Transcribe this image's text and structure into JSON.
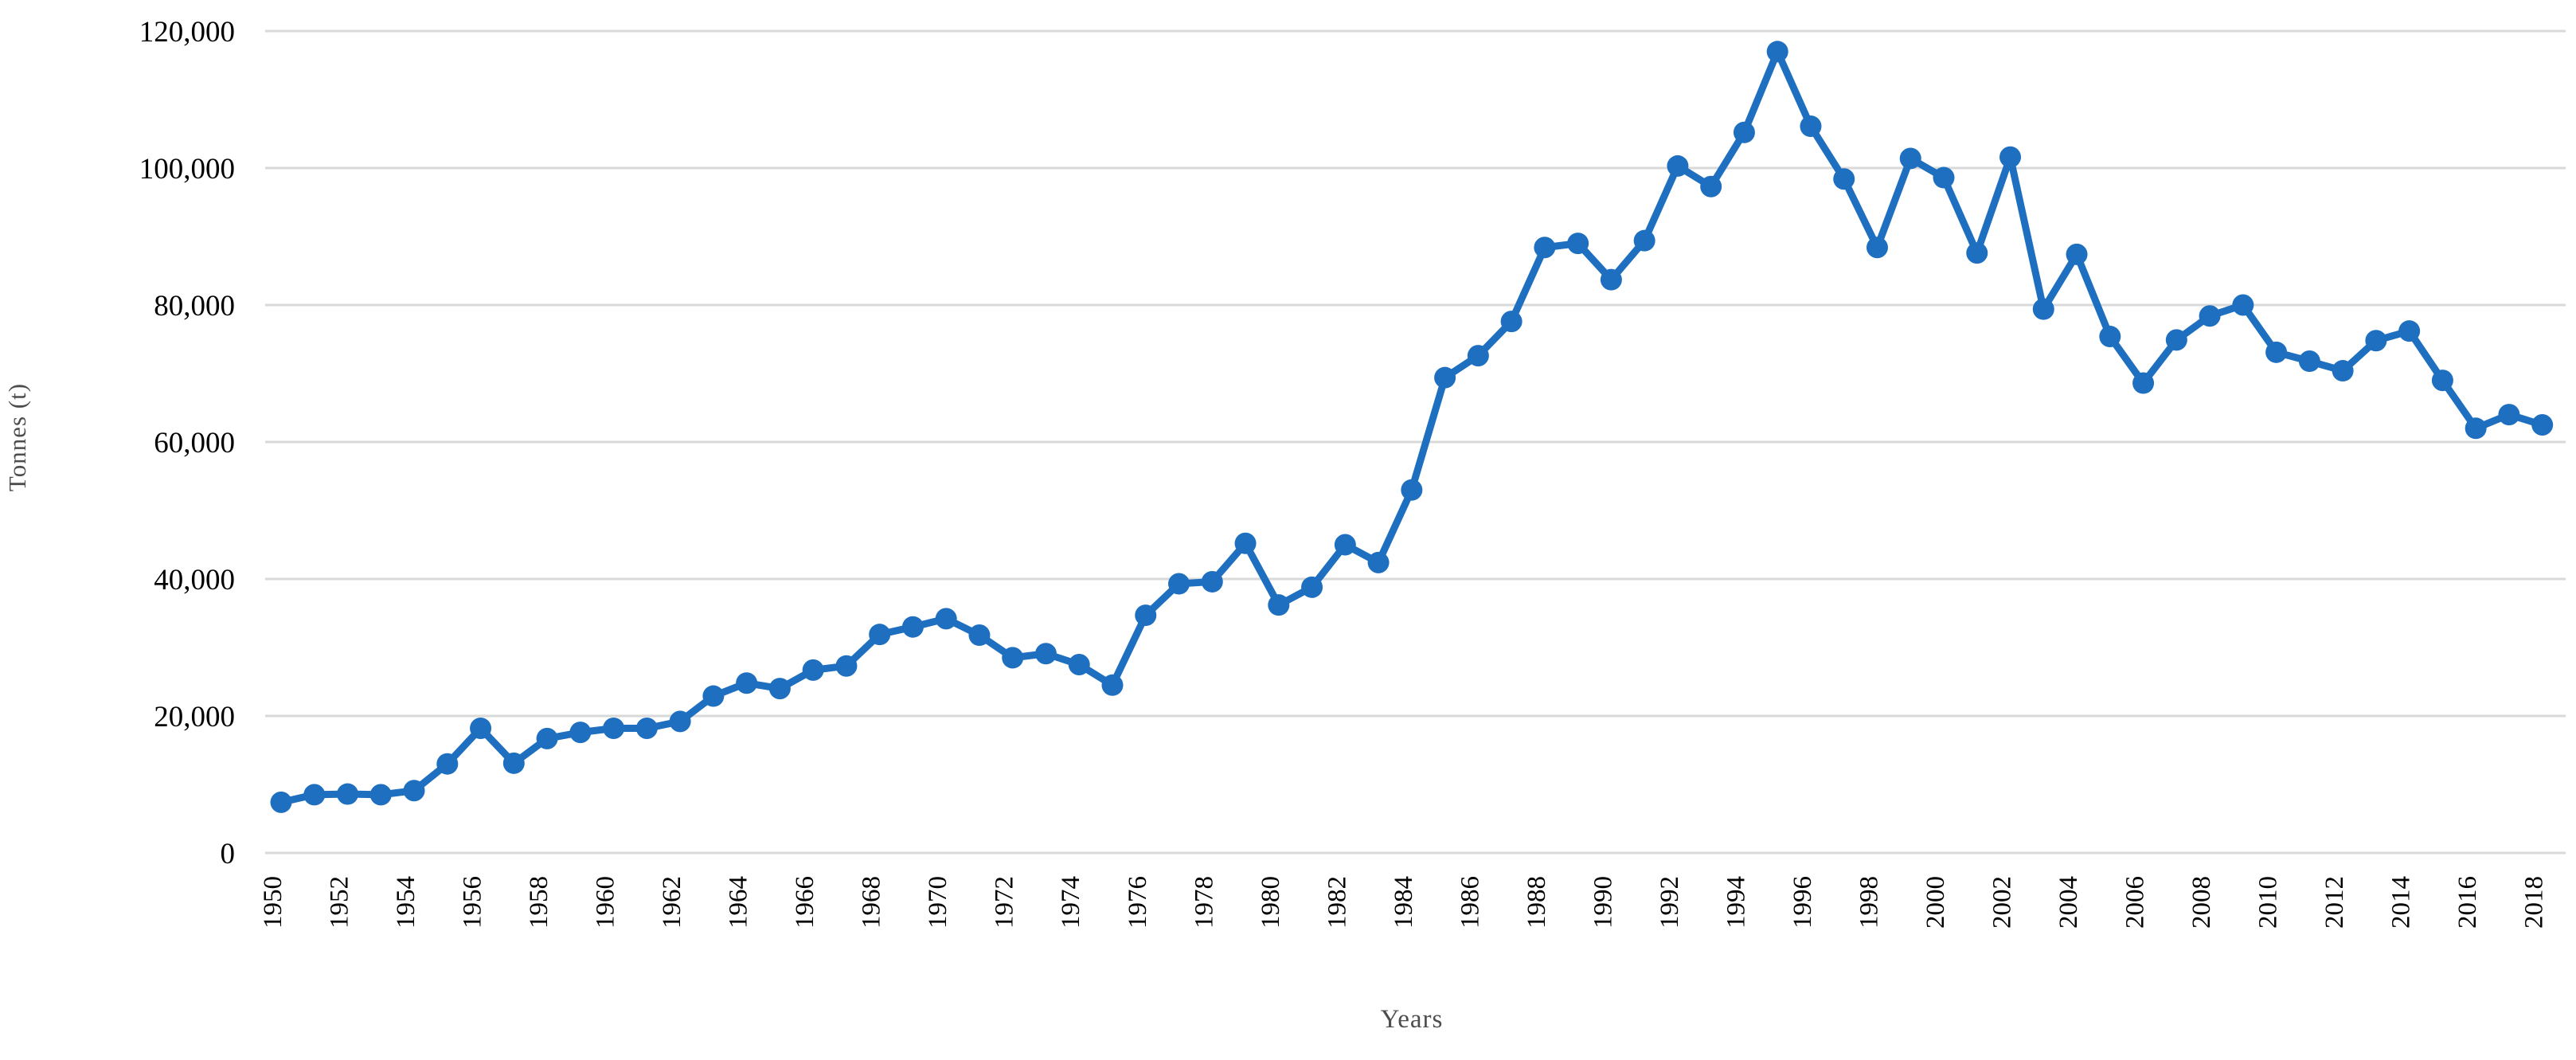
{
  "colors": {
    "series_line": "#1e6fc0",
    "gridline": "#d9d9d9",
    "tick_text": "#000000",
    "axis_title_text": "#4d4d4d",
    "background": "#ffffff"
  },
  "chart_data": {
    "type": "line",
    "title": "",
    "xlabel": "Years",
    "ylabel": "Tonnes (t)",
    "legend_position": "none",
    "grid": true,
    "marker": "circle",
    "ylim": [
      0,
      120000
    ],
    "ytick_step": 20000,
    "ytick_labels": [
      "0",
      "20,000",
      "40,000",
      "60,000",
      "80,000",
      "100,000",
      "120,000"
    ],
    "xtick_labels": [
      "1950",
      "1952",
      "1954",
      "1956",
      "1958",
      "1960",
      "1962",
      "1964",
      "1966",
      "1968",
      "1970",
      "1972",
      "1974",
      "1976",
      "1978",
      "1980",
      "1982",
      "1984",
      "1986",
      "1988",
      "1990",
      "1992",
      "1994",
      "1996",
      "1998",
      "2000",
      "2002",
      "2004",
      "2006",
      "2008",
      "2010",
      "2012",
      "2014",
      "2016",
      "2018"
    ],
    "x": [
      1950,
      1951,
      1952,
      1953,
      1954,
      1955,
      1956,
      1957,
      1958,
      1959,
      1960,
      1961,
      1962,
      1963,
      1964,
      1965,
      1966,
      1967,
      1968,
      1969,
      1970,
      1971,
      1972,
      1973,
      1974,
      1975,
      1976,
      1977,
      1978,
      1979,
      1980,
      1981,
      1982,
      1983,
      1984,
      1985,
      1986,
      1987,
      1988,
      1989,
      1990,
      1991,
      1992,
      1993,
      1994,
      1995,
      1996,
      1997,
      1998,
      1999,
      2000,
      2001,
      2002,
      2003,
      2004,
      2005,
      2006,
      2007,
      2008,
      2009,
      2010,
      2011,
      2012,
      2013,
      2014,
      2015,
      2016,
      2017,
      2018
    ],
    "values": [
      7400,
      8500,
      8600,
      8500,
      9100,
      13000,
      18200,
      13100,
      16700,
      17600,
      18200,
      18200,
      19200,
      22900,
      24800,
      24000,
      26700,
      27300,
      31900,
      33000,
      34200,
      31800,
      28500,
      29100,
      27500,
      24500,
      34700,
      39300,
      39600,
      45200,
      36200,
      38800,
      45000,
      42400,
      53000,
      69400,
      72600,
      77600,
      88400,
      89000,
      83700,
      89400,
      100300,
      97300,
      105200,
      117000,
      106100,
      98400,
      88400,
      101400,
      98600,
      87600,
      101600,
      79400,
      87400,
      75400,
      68600,
      74900,
      78400,
      80000,
      73100,
      71800,
      70400,
      74800,
      76200,
      69000,
      62000,
      64000,
      62500
    ]
  }
}
